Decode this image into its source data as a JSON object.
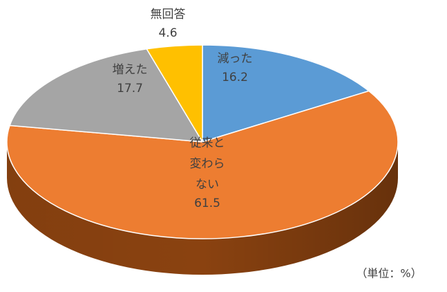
{
  "chart_data": {
    "type": "pie3d",
    "categories": [
      "減った",
      "従来と変わらない",
      "増えた",
      "無回答"
    ],
    "values": [
      16.2,
      61.5,
      17.7,
      4.6
    ],
    "colors": [
      "#5b9bd5",
      "#ed7d31",
      "#a5a5a5",
      "#ffc000"
    ],
    "side_colors": [
      "#2e5f8c",
      "#8a4210",
      "#5e5e5e",
      "#9a7400"
    ],
    "note": "（単位：%）"
  }
}
